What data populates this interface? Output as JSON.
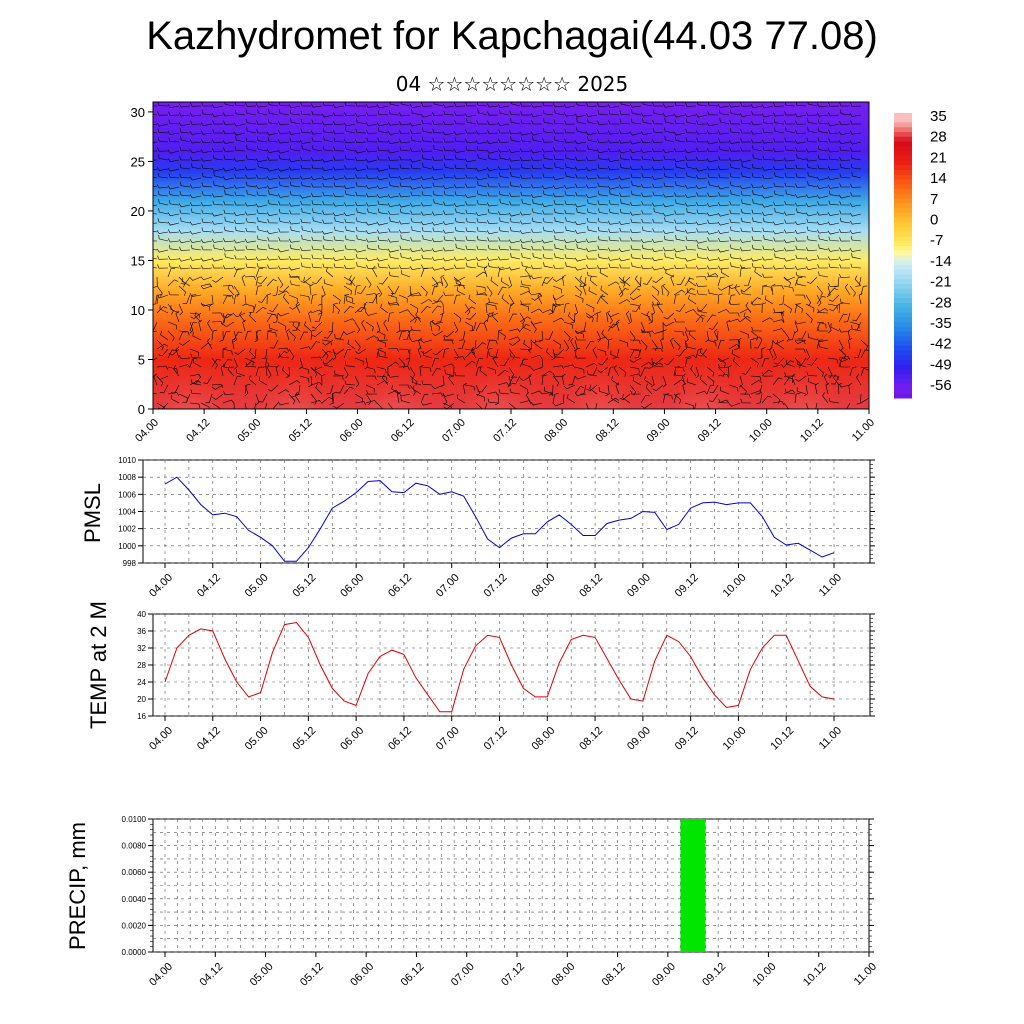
{
  "title": "Kazhydromet for Kapchagai(44.03 77.08)",
  "subtitle": "04 ☆☆☆☆☆☆☆☆ 2025",
  "colors": {
    "pmsl_line": "#0000dd",
    "temp_line": "#dd0000",
    "precip_bar": "#00e600",
    "barb": "#000000"
  },
  "chart_data": [
    {
      "type": "heatmap",
      "name": "cross-section",
      "ylim": [
        0,
        31
      ],
      "yticks": [
        0,
        5,
        10,
        15,
        20,
        25,
        30
      ],
      "x_ticks": [
        "04.00",
        "04.12",
        "05.00",
        "05.12",
        "06.00",
        "06.12",
        "07.00",
        "07.12",
        "08.00",
        "08.12",
        "09.00",
        "09.12",
        "10.00",
        "10.12",
        "11.00"
      ],
      "colorbar_labels": [
        "35",
        "28",
        "21",
        "14",
        "7",
        "0",
        "-7",
        "-14",
        "-21",
        "-28",
        "-35",
        "-42",
        "-49",
        "-56"
      ],
      "profile": [
        {
          "level": 0,
          "value": 30
        },
        {
          "level": 5,
          "value": 20
        },
        {
          "level": 9,
          "value": 12
        },
        {
          "level": 12,
          "value": 4
        },
        {
          "level": 15,
          "value": -7
        },
        {
          "level": 18,
          "value": -18
        },
        {
          "level": 21,
          "value": -30
        },
        {
          "level": 24,
          "value": -45
        },
        {
          "level": 26,
          "value": -52
        },
        {
          "level": 31,
          "value": -56
        }
      ],
      "grid": false
    },
    {
      "type": "line",
      "name": "pmsl",
      "ylabel": "PMSL",
      "ylim": [
        998,
        1010
      ],
      "yticks": [
        998,
        1000,
        1002,
        1004,
        1006,
        1008,
        1010
      ],
      "x_ticks": [
        "04.00",
        "04.12",
        "05.00",
        "05.12",
        "06.00",
        "06.12",
        "07.00",
        "07.12",
        "08.00",
        "08.12",
        "09.00",
        "09.12",
        "10.00",
        "10.12",
        "11.00"
      ],
      "values": [
        1007.2,
        1008.0,
        1006.5,
        1004.8,
        1003.6,
        1003.8,
        1003.4,
        1001.8,
        1001.0,
        1000.0,
        998.2,
        998.2,
        999.8,
        1002.0,
        1004.4,
        1005.2,
        1006.2,
        1007.5,
        1007.6,
        1006.3,
        1006.2,
        1007.3,
        1007.0,
        1006.0,
        1006.3,
        1005.8,
        1003.4,
        1000.8,
        999.8,
        1000.9,
        1001.4,
        1001.4,
        1002.8,
        1003.6,
        1002.5,
        1001.2,
        1001.2,
        1002.6,
        1003.0,
        1003.2,
        1004.0,
        1003.9,
        1001.9,
        1002.5,
        1004.4,
        1005.0,
        1005.1,
        1004.8,
        1005.0,
        1005.0,
        1003.4,
        1001.0,
        1000.1,
        1000.3,
        999.5,
        998.7,
        999.2
      ],
      "grid": true
    },
    {
      "type": "line",
      "name": "temp2m",
      "ylabel": "TEMP at 2 M",
      "ylim": [
        16,
        40
      ],
      "yticks": [
        16,
        20,
        24,
        28,
        32,
        36,
        40
      ],
      "x_ticks": [
        "04.00",
        "04.12",
        "05.00",
        "05.12",
        "06.00",
        "06.12",
        "07.00",
        "07.12",
        "08.00",
        "08.12",
        "09.00",
        "09.12",
        "10.00",
        "10.12",
        "11.00"
      ],
      "values": [
        24.0,
        32.0,
        35.0,
        36.5,
        36.0,
        29.5,
        24.0,
        20.5,
        21.5,
        31.0,
        37.5,
        38.0,
        34.5,
        28.0,
        22.5,
        19.5,
        18.5,
        26.0,
        30.0,
        31.5,
        30.5,
        25.0,
        21.0,
        17.0,
        17.0,
        27.0,
        32.5,
        35.0,
        34.5,
        28.0,
        22.5,
        20.5,
        20.5,
        28.5,
        34.0,
        35.0,
        34.5,
        29.5,
        24.5,
        20.0,
        19.5,
        29.0,
        35.0,
        33.5,
        30.0,
        25.0,
        21.0,
        18.0,
        18.5,
        27.0,
        32.0,
        35.0,
        35.0,
        29.0,
        23.0,
        20.5,
        20.0
      ],
      "grid": true
    },
    {
      "type": "bar",
      "name": "precip",
      "ylabel": "PRECIP, mm",
      "ylim": [
        0,
        0.01
      ],
      "ytick_labels": [
        "0.0000",
        "0.0020",
        "0.0040",
        "0.0060",
        "0.0080",
        "0.0100"
      ],
      "x_ticks": [
        "04.00",
        "04.12",
        "05.00",
        "05.12",
        "06.00",
        "06.12",
        "07.00",
        "07.12",
        "08.00",
        "08.12",
        "09.00",
        "09.12",
        "10.00",
        "10.12",
        "11.00"
      ],
      "bars": [
        {
          "x_start": "09.03",
          "x_end": "09.09",
          "value": 0.01
        }
      ],
      "grid": true
    }
  ]
}
